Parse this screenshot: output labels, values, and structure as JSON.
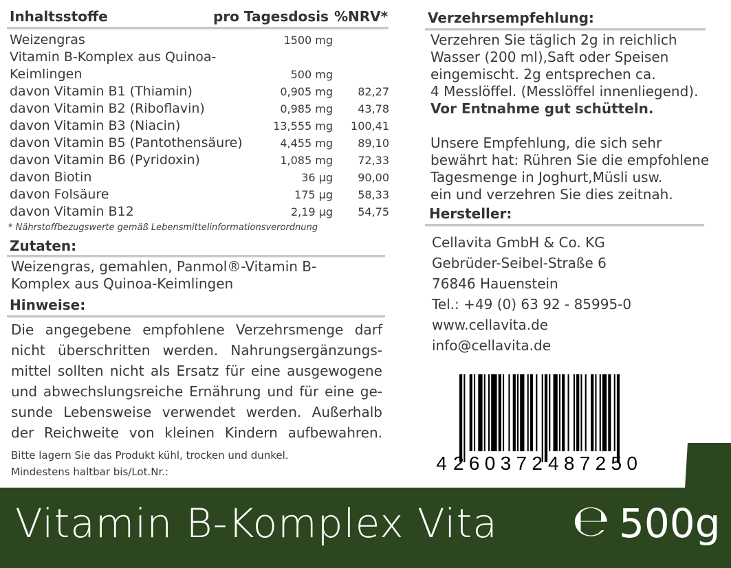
{
  "nutrition": {
    "header": [
      "Inhaltsstoffe",
      "pro Tagesdosis",
      "%NRV*"
    ],
    "rows": [
      [
        "Weizengras",
        "1500 mg",
        null
      ],
      [
        "Vitamin B-Komplex aus Quinoa-Keimlingen",
        "500 mg",
        null
      ],
      [
        "davon Vitamin B1 (Thiamin)",
        "0,905 mg",
        "82,27"
      ],
      [
        "davon Vitamin B2 (Riboflavin)",
        "0,985 mg",
        "43,78"
      ],
      [
        "davon Vitamin B3 (Niacin)",
        "13,555 mg",
        "100,41"
      ],
      [
        "davon Vitamin B5 (Pantothensäure)",
        "4,455 mg",
        "89,10"
      ],
      [
        "davon Vitamin B6 (Pyridoxin)",
        "1,085 mg",
        "72,33"
      ],
      [
        "davon Biotin",
        "36 µg",
        "90,00"
      ],
      [
        "davon Folsäure",
        "175 µg",
        "58,33"
      ],
      [
        "davon Vitamin B12",
        "2,19 µg",
        "54,75"
      ]
    ],
    "footnote": "* Nährstoffbezugswerte gemäß Lebensmittelinformationsverordnung"
  },
  "ingredients": {
    "title": "Zutaten:",
    "lines": [
      "Weizengras, gemahlen, Panmol®-Vitamin B-",
      "Komplex aus Quinoa-Keimlingen"
    ]
  },
  "notes": {
    "title": "Hinweise:",
    "lines": [
      "Die angegebene empfohlene Verzehrsmenge darf",
      "nicht überschritten werden. Nahrungsergänzungs-",
      "mittel sollten nicht als Ersatz für eine ausgewogene",
      "und abwechslungsreiche Ernährung und für eine ge-",
      "sunde Lebensweise verwendet werden. Außerhalb",
      "der Reichweite von kleinen Kindern aufbewahren."
    ],
    "storage": [
      "Bitte lagern Sie das Produkt kühl, trocken und dunkel.",
      "Mindestens haltbar bis/Lot.Nr.:"
    ]
  },
  "recommendation": {
    "title": "Verzehrsempfehlung:",
    "lines": [
      "Verzehren Sie täglich 2g in reichlich",
      "Wasser (200 ml),Saft oder Speisen",
      "eingemischt. 2g entsprechen ca.",
      "4 Messlöffel. (Messlöffel innenliegend)."
    ],
    "emphasis": "Vor Entnahme gut schütteln.",
    "tip": [
      "Unsere Empfehlung, die sich sehr",
      "bewährt hat: Rühren Sie die empfohlene",
      "Tagesmenge in Joghurt,Müsli usw.",
      "ein und verzehren Sie dies zeitnah."
    ]
  },
  "manufacturer": {
    "title": "Hersteller:",
    "lines": [
      "Cellavita GmbH & Co. KG",
      "Gebrüder-Seibel-Straße 6",
      "76846 Hauenstein",
      "Tel.: +49 (0) 63 92 - 85995-0",
      "www.cellavita.de",
      "info@cellavita.de"
    ]
  },
  "barcode": [
    "4",
    "260372",
    "487250"
  ],
  "footer": {
    "product": "Vitamin B-Komplex Vita",
    "mark": "℮",
    "quantity": "500g"
  }
}
